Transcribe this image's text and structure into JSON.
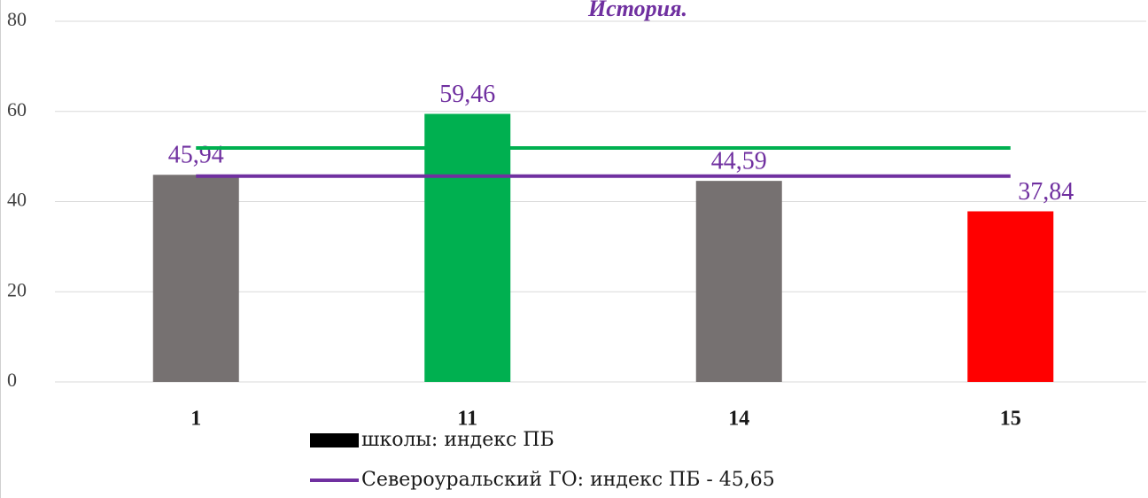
{
  "chart_data": {
    "type": "bar",
    "title": "История.",
    "categories": [
      "1",
      "11",
      "14",
      "15"
    ],
    "series": [
      {
        "name": "школы: индекс ПБ",
        "type": "bar",
        "legend_color": "#000000",
        "colors": [
          "#767171",
          "#00b050",
          "#767171",
          "#ff0000"
        ],
        "values": [
          45.94,
          59.46,
          44.59,
          37.84
        ],
        "value_labels": [
          "45,94",
          "59,46",
          "44,59",
          "37,84"
        ]
      },
      {
        "type": "line",
        "color": "#00b050",
        "values": [
          51.9,
          51.9,
          51.9,
          51.9
        ]
      },
      {
        "name": "Североуральский ГО: индекс ПБ - 45,65",
        "type": "line",
        "color": "#7030a0",
        "values": [
          45.65,
          45.65,
          45.65,
          45.65
        ]
      }
    ],
    "ylim": [
      0,
      80
    ],
    "yticks": [
      0,
      20,
      40,
      60,
      80
    ],
    "grid": true
  }
}
